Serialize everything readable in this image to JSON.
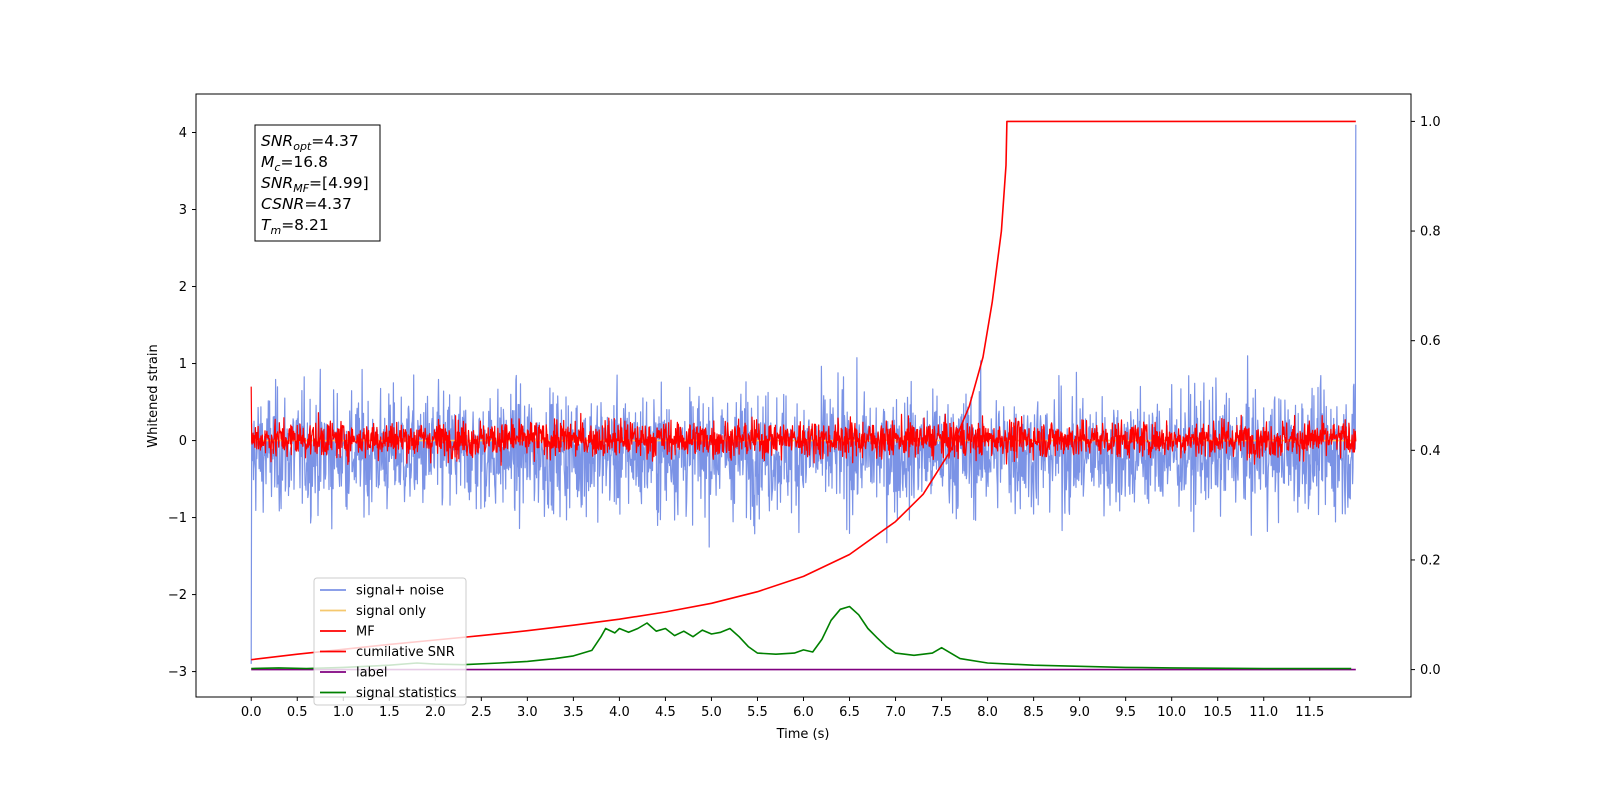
{
  "chart_data": {
    "type": "line",
    "title": "",
    "xlabel": "Time (s)",
    "ylabel": "Whitened strain",
    "xlim": [
      -0.6,
      12.6
    ],
    "ylim": [
      -3.33,
      4.5
    ],
    "y2lim": [
      -0.05,
      1.05
    ],
    "grid": false,
    "legend_position": "lower-left",
    "x_ticks": [
      "0.0",
      "0.5",
      "1.0",
      "1.5",
      "2.0",
      "2.5",
      "3.0",
      "3.5",
      "4.0",
      "4.5",
      "5.0",
      "5.5",
      "6.0",
      "6.5",
      "7.0",
      "7.5",
      "8.0",
      "8.5",
      "9.0",
      "9.5",
      "10.0",
      "10.5",
      "11.0",
      "11.5"
    ],
    "y_ticks": [
      "−3",
      "−2",
      "−1",
      "0",
      "1",
      "2",
      "3",
      "4"
    ],
    "y2_ticks": [
      "0.0",
      "0.2",
      "0.4",
      "0.6",
      "0.8",
      "1.0"
    ],
    "info_box": [
      {
        "symbol": "SNR",
        "sub": "opt",
        "value": "=4.37"
      },
      {
        "symbol": "M",
        "sub": "c",
        "value": "=16.8"
      },
      {
        "symbol": "SNR",
        "sub": "MF",
        "value": "=[4.99]"
      },
      {
        "symbol": "CSNR",
        "sub": "",
        "value": "=4.37"
      },
      {
        "symbol": "T",
        "sub": "m",
        "value": "=8.21"
      }
    ],
    "series": [
      {
        "name": "signal+ noise",
        "color": "#7b93e6",
        "axis": "left",
        "style": "noise",
        "mean": -0.15,
        "amplitude": 0.55,
        "x_range": [
          0.0,
          12.0
        ]
      },
      {
        "name": "signal only",
        "color": "#f5c86e",
        "axis": "left",
        "style": "flat",
        "value": 0.0,
        "x_range": [
          0.0,
          12.0
        ]
      },
      {
        "name": "MF",
        "color": "#ff0000",
        "axis": "left",
        "style": "noise",
        "mean": 0.02,
        "amplitude": 0.17,
        "x_range": [
          0.0,
          12.0
        ]
      },
      {
        "name": "cumilative SNR",
        "color": "#ff0000",
        "axis": "right",
        "style": "curve",
        "x": [
          0.0,
          0.5,
          1.0,
          1.5,
          2.0,
          2.5,
          3.0,
          3.5,
          4.0,
          4.5,
          5.0,
          5.5,
          6.0,
          6.5,
          7.0,
          7.3,
          7.6,
          7.8,
          7.95,
          8.05,
          8.15,
          8.2,
          8.21,
          12.0
        ],
        "y": [
          0.018,
          0.028,
          0.037,
          0.046,
          0.054,
          0.062,
          0.071,
          0.081,
          0.092,
          0.105,
          0.121,
          0.142,
          0.17,
          0.21,
          0.27,
          0.32,
          0.4,
          0.48,
          0.57,
          0.67,
          0.8,
          0.92,
          1.0,
          1.0
        ]
      },
      {
        "name": "label",
        "color": "#800080",
        "axis": "right",
        "style": "curve",
        "x": [
          0.0,
          12.0
        ],
        "y": [
          0.0,
          0.0
        ]
      },
      {
        "name": "signal statistics",
        "color": "#008000",
        "axis": "right",
        "style": "curve",
        "x": [
          0.0,
          0.3,
          0.6,
          1.0,
          1.5,
          1.8,
          2.0,
          2.3,
          2.7,
          3.0,
          3.3,
          3.5,
          3.7,
          3.8,
          3.85,
          3.95,
          4.0,
          4.1,
          4.2,
          4.3,
          4.4,
          4.5,
          4.6,
          4.7,
          4.8,
          4.9,
          5.0,
          5.1,
          5.2,
          5.3,
          5.4,
          5.5,
          5.7,
          5.9,
          6.0,
          6.1,
          6.2,
          6.3,
          6.4,
          6.5,
          6.6,
          6.7,
          6.8,
          6.9,
          7.0,
          7.2,
          7.4,
          7.5,
          7.7,
          8.0,
          8.5,
          9.0,
          9.5,
          10.0,
          11.0,
          11.95
        ],
        "y": [
          0.002,
          0.003,
          0.002,
          0.004,
          0.008,
          0.012,
          0.01,
          0.009,
          0.012,
          0.015,
          0.02,
          0.025,
          0.035,
          0.06,
          0.075,
          0.067,
          0.075,
          0.068,
          0.075,
          0.085,
          0.07,
          0.075,
          0.062,
          0.07,
          0.06,
          0.072,
          0.065,
          0.068,
          0.075,
          0.06,
          0.042,
          0.03,
          0.028,
          0.03,
          0.036,
          0.032,
          0.055,
          0.09,
          0.11,
          0.115,
          0.1,
          0.075,
          0.058,
          0.042,
          0.03,
          0.026,
          0.03,
          0.04,
          0.02,
          0.012,
          0.008,
          0.006,
          0.004,
          0.003,
          0.002,
          0.002
        ]
      }
    ]
  }
}
